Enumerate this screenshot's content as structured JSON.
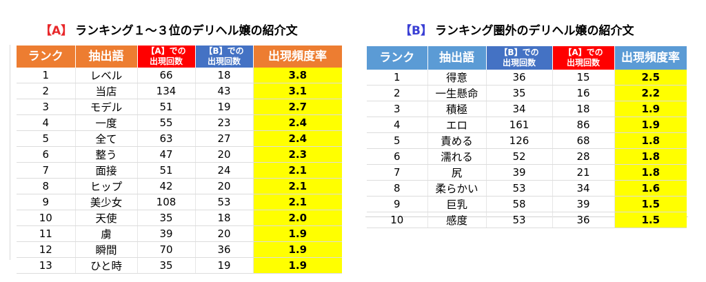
{
  "titleA": {
    "tag": "【A】",
    "text": "ランキング１～３位のデリヘル嬢の紹介文"
  },
  "titleB": {
    "tag": "【B】",
    "text": "ランキング圏外のデリヘル嬢の紹介文"
  },
  "tableA": {
    "headers": {
      "rank": "ランク",
      "word": "抽出語",
      "countA_1": "【A】での",
      "countA_2": "出現回数",
      "countB_1": "【B】での",
      "countB_2": "出現回数",
      "rate": "出現頻度率"
    },
    "rows": [
      {
        "rank": "1",
        "word": "レベル",
        "a": "66",
        "b": "18",
        "rate": "3.8"
      },
      {
        "rank": "2",
        "word": "当店",
        "a": "134",
        "b": "43",
        "rate": "3.1"
      },
      {
        "rank": "3",
        "word": "モデル",
        "a": "51",
        "b": "19",
        "rate": "2.7"
      },
      {
        "rank": "4",
        "word": "一度",
        "a": "55",
        "b": "23",
        "rate": "2.4"
      },
      {
        "rank": "5",
        "word": "全て",
        "a": "63",
        "b": "27",
        "rate": "2.4"
      },
      {
        "rank": "6",
        "word": "整う",
        "a": "47",
        "b": "20",
        "rate": "2.3"
      },
      {
        "rank": "7",
        "word": "面接",
        "a": "51",
        "b": "24",
        "rate": "2.1"
      },
      {
        "rank": "8",
        "word": "ヒップ",
        "a": "42",
        "b": "20",
        "rate": "2.1"
      },
      {
        "rank": "9",
        "word": "美少女",
        "a": "108",
        "b": "53",
        "rate": "2.1"
      },
      {
        "rank": "10",
        "word": "天使",
        "a": "35",
        "b": "18",
        "rate": "2.0"
      },
      {
        "rank": "11",
        "word": "虜",
        "a": "39",
        "b": "20",
        "rate": "1.9"
      },
      {
        "rank": "12",
        "word": "瞬間",
        "a": "70",
        "b": "36",
        "rate": "1.9"
      },
      {
        "rank": "13",
        "word": "ひと時",
        "a": "35",
        "b": "19",
        "rate": "1.9"
      }
    ]
  },
  "tableB": {
    "headers": {
      "rank": "ランク",
      "word": "抽出語",
      "countB_1": "【B】での",
      "countB_2": "出現回数",
      "countA_1": "【A】での",
      "countA_2": "出現回数",
      "rate": "出現頻度率"
    },
    "rows": [
      {
        "rank": "1",
        "word": "得意",
        "b": "36",
        "a": "15",
        "rate": "2.5"
      },
      {
        "rank": "2",
        "word": "一生懸命",
        "b": "35",
        "a": "16",
        "rate": "2.2"
      },
      {
        "rank": "3",
        "word": "積極",
        "b": "34",
        "a": "18",
        "rate": "1.9"
      },
      {
        "rank": "4",
        "word": "エロ",
        "b": "161",
        "a": "86",
        "rate": "1.9"
      },
      {
        "rank": "5",
        "word": "責める",
        "b": "126",
        "a": "68",
        "rate": "1.8"
      },
      {
        "rank": "6",
        "word": "濡れる",
        "b": "52",
        "a": "28",
        "rate": "1.8"
      },
      {
        "rank": "7",
        "word": "尻",
        "b": "39",
        "a": "21",
        "rate": "1.8"
      },
      {
        "rank": "8",
        "word": "柔らかい",
        "b": "53",
        "a": "34",
        "rate": "1.6"
      },
      {
        "rank": "9",
        "word": "巨乳",
        "b": "58",
        "a": "39",
        "rate": "1.5"
      },
      {
        "rank": "10",
        "word": "感度",
        "b": "53",
        "a": "36",
        "rate": "1.5"
      }
    ]
  }
}
